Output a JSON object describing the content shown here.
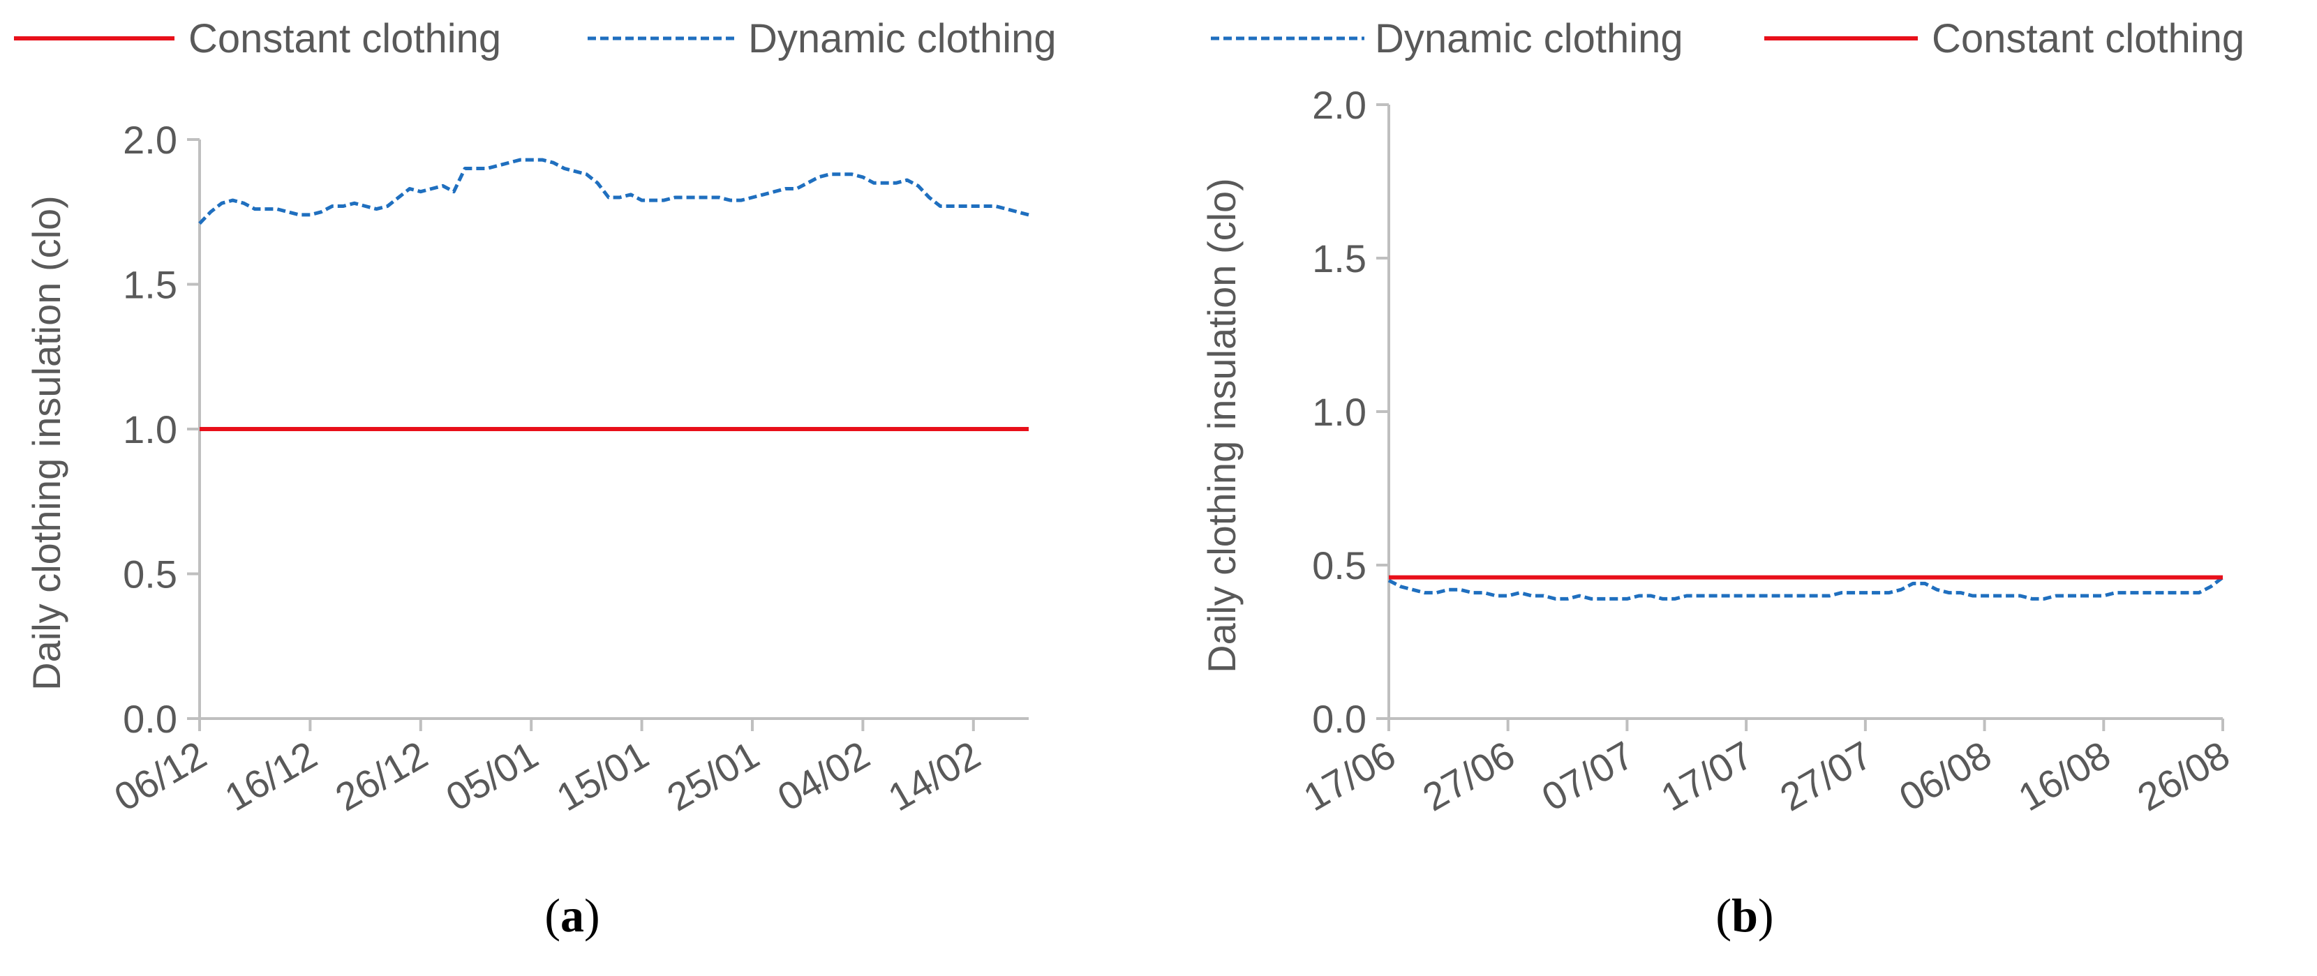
{
  "colors": {
    "constant": "#e8101a",
    "dynamic": "#1f6fbf",
    "axis": "#bfbfbf",
    "text": "#595959"
  },
  "chart_data": [
    {
      "type": "line",
      "panel_label": "(a)",
      "panel_letter": "a",
      "legend": [
        "Constant clothing",
        "Dynamic clothing"
      ],
      "legend_position": "top",
      "ylabel": "Daily clothing insulation (clo)",
      "xlabel": "",
      "ylim": [
        0.0,
        2.0
      ],
      "yticks": [
        "0.0",
        "0.5",
        "1.0",
        "1.5",
        "2.0"
      ],
      "xticks": [
        "06/12",
        "16/12",
        "26/12",
        "05/01",
        "15/01",
        "25/01",
        "04/02",
        "14/02"
      ],
      "x": [
        "06/12",
        "07/12",
        "08/12",
        "09/12",
        "10/12",
        "11/12",
        "12/12",
        "13/12",
        "14/12",
        "15/12",
        "16/12",
        "17/12",
        "18/12",
        "19/12",
        "20/12",
        "21/12",
        "22/12",
        "23/12",
        "24/12",
        "25/12",
        "26/12",
        "27/12",
        "28/12",
        "29/12",
        "30/12",
        "31/12",
        "01/01",
        "02/01",
        "03/01",
        "04/01",
        "05/01",
        "06/01",
        "07/01",
        "08/01",
        "09/01",
        "10/01",
        "11/01",
        "12/01",
        "13/01",
        "14/01",
        "15/01",
        "16/01",
        "17/01",
        "18/01",
        "19/01",
        "20/01",
        "21/01",
        "22/01",
        "23/01",
        "24/01",
        "25/01",
        "26/01",
        "27/01",
        "28/01",
        "29/01",
        "30/01",
        "31/01",
        "01/02",
        "02/02",
        "03/02",
        "04/02",
        "05/02",
        "06/02",
        "07/02",
        "08/02",
        "09/02",
        "10/02",
        "11/02",
        "12/02",
        "13/02",
        "14/02",
        "15/02",
        "16/02",
        "17/02",
        "18/02",
        "19/02"
      ],
      "grid": false,
      "series": [
        {
          "name": "Constant clothing",
          "style": "solid",
          "values": [
            1.0,
            1.0,
            1.0,
            1.0,
            1.0,
            1.0,
            1.0,
            1.0,
            1.0,
            1.0,
            1.0,
            1.0,
            1.0,
            1.0,
            1.0,
            1.0,
            1.0,
            1.0,
            1.0,
            1.0,
            1.0,
            1.0,
            1.0,
            1.0,
            1.0,
            1.0,
            1.0,
            1.0,
            1.0,
            1.0,
            1.0,
            1.0,
            1.0,
            1.0,
            1.0,
            1.0,
            1.0,
            1.0,
            1.0,
            1.0,
            1.0,
            1.0,
            1.0,
            1.0,
            1.0,
            1.0,
            1.0,
            1.0,
            1.0,
            1.0,
            1.0,
            1.0,
            1.0,
            1.0,
            1.0,
            1.0,
            1.0,
            1.0,
            1.0,
            1.0,
            1.0,
            1.0,
            1.0,
            1.0,
            1.0,
            1.0,
            1.0,
            1.0,
            1.0,
            1.0,
            1.0,
            1.0,
            1.0,
            1.0,
            1.0,
            1.0
          ]
        },
        {
          "name": "Dynamic clothing",
          "style": "dashed",
          "values": [
            1.71,
            1.75,
            1.78,
            1.79,
            1.78,
            1.76,
            1.76,
            1.76,
            1.75,
            1.74,
            1.74,
            1.75,
            1.77,
            1.77,
            1.78,
            1.77,
            1.76,
            1.77,
            1.8,
            1.83,
            1.82,
            1.83,
            1.84,
            1.82,
            1.9,
            1.9,
            1.9,
            1.91,
            1.92,
            1.93,
            1.93,
            1.93,
            1.92,
            1.9,
            1.89,
            1.88,
            1.85,
            1.8,
            1.8,
            1.81,
            1.79,
            1.79,
            1.79,
            1.8,
            1.8,
            1.8,
            1.8,
            1.8,
            1.79,
            1.79,
            1.8,
            1.81,
            1.82,
            1.83,
            1.83,
            1.85,
            1.87,
            1.88,
            1.88,
            1.88,
            1.87,
            1.85,
            1.85,
            1.85,
            1.86,
            1.84,
            1.8,
            1.77,
            1.77,
            1.77,
            1.77,
            1.77,
            1.77,
            1.76,
            1.75,
            1.74
          ]
        }
      ]
    },
    {
      "type": "line",
      "panel_label": "(b)",
      "panel_letter": "b",
      "legend": [
        "Dynamic clothing",
        "Constant clothing"
      ],
      "legend_position": "top",
      "ylabel": "Daily clothing insulation (clo)",
      "xlabel": "",
      "ylim": [
        0.0,
        2.0
      ],
      "yticks": [
        "0.0",
        "0.5",
        "1.0",
        "1.5",
        "2.0"
      ],
      "xticks": [
        "17/06",
        "27/06",
        "07/07",
        "17/07",
        "27/07",
        "06/08",
        "16/08",
        "26/08"
      ],
      "x": [
        "17/06",
        "18/06",
        "19/06",
        "20/06",
        "21/06",
        "22/06",
        "23/06",
        "24/06",
        "25/06",
        "26/06",
        "27/06",
        "28/06",
        "29/06",
        "30/06",
        "01/07",
        "02/07",
        "03/07",
        "04/07",
        "05/07",
        "06/07",
        "07/07",
        "08/07",
        "09/07",
        "10/07",
        "11/07",
        "12/07",
        "13/07",
        "14/07",
        "15/07",
        "16/07",
        "17/07",
        "18/07",
        "19/07",
        "20/07",
        "21/07",
        "22/07",
        "23/07",
        "24/07",
        "25/07",
        "26/07",
        "27/07",
        "28/07",
        "29/07",
        "30/07",
        "31/07",
        "01/08",
        "02/08",
        "03/08",
        "04/08",
        "05/08",
        "06/08",
        "07/08",
        "08/08",
        "09/08",
        "10/08",
        "11/08",
        "12/08",
        "13/08",
        "14/08",
        "15/08",
        "16/08",
        "17/08",
        "18/08",
        "19/08",
        "20/08",
        "21/08",
        "22/08",
        "23/08",
        "24/08",
        "25/08",
        "26/08"
      ],
      "grid": false,
      "series": [
        {
          "name": "Dynamic clothing",
          "style": "dashed",
          "values": [
            0.45,
            0.43,
            0.42,
            0.41,
            0.41,
            0.42,
            0.42,
            0.41,
            0.41,
            0.4,
            0.4,
            0.41,
            0.4,
            0.4,
            0.39,
            0.39,
            0.4,
            0.39,
            0.39,
            0.39,
            0.39,
            0.4,
            0.4,
            0.39,
            0.39,
            0.4,
            0.4,
            0.4,
            0.4,
            0.4,
            0.4,
            0.4,
            0.4,
            0.4,
            0.4,
            0.4,
            0.4,
            0.4,
            0.41,
            0.41,
            0.41,
            0.41,
            0.41,
            0.42,
            0.44,
            0.44,
            0.42,
            0.41,
            0.41,
            0.4,
            0.4,
            0.4,
            0.4,
            0.4,
            0.39,
            0.39,
            0.4,
            0.4,
            0.4,
            0.4,
            0.4,
            0.41,
            0.41,
            0.41,
            0.41,
            0.41,
            0.41,
            0.41,
            0.41,
            0.43,
            0.46
          ]
        },
        {
          "name": "Constant clothing",
          "style": "solid",
          "values": [
            0.46,
            0.46,
            0.46,
            0.46,
            0.46,
            0.46,
            0.46,
            0.46,
            0.46,
            0.46,
            0.46,
            0.46,
            0.46,
            0.46,
            0.46,
            0.46,
            0.46,
            0.46,
            0.46,
            0.46,
            0.46,
            0.46,
            0.46,
            0.46,
            0.46,
            0.46,
            0.46,
            0.46,
            0.46,
            0.46,
            0.46,
            0.46,
            0.46,
            0.46,
            0.46,
            0.46,
            0.46,
            0.46,
            0.46,
            0.46,
            0.46,
            0.46,
            0.46,
            0.46,
            0.46,
            0.46,
            0.46,
            0.46,
            0.46,
            0.46,
            0.46,
            0.46,
            0.46,
            0.46,
            0.46,
            0.46,
            0.46,
            0.46,
            0.46,
            0.46,
            0.46,
            0.46,
            0.46,
            0.46,
            0.46,
            0.46,
            0.46,
            0.46,
            0.46,
            0.46,
            0.46
          ]
        }
      ]
    }
  ]
}
